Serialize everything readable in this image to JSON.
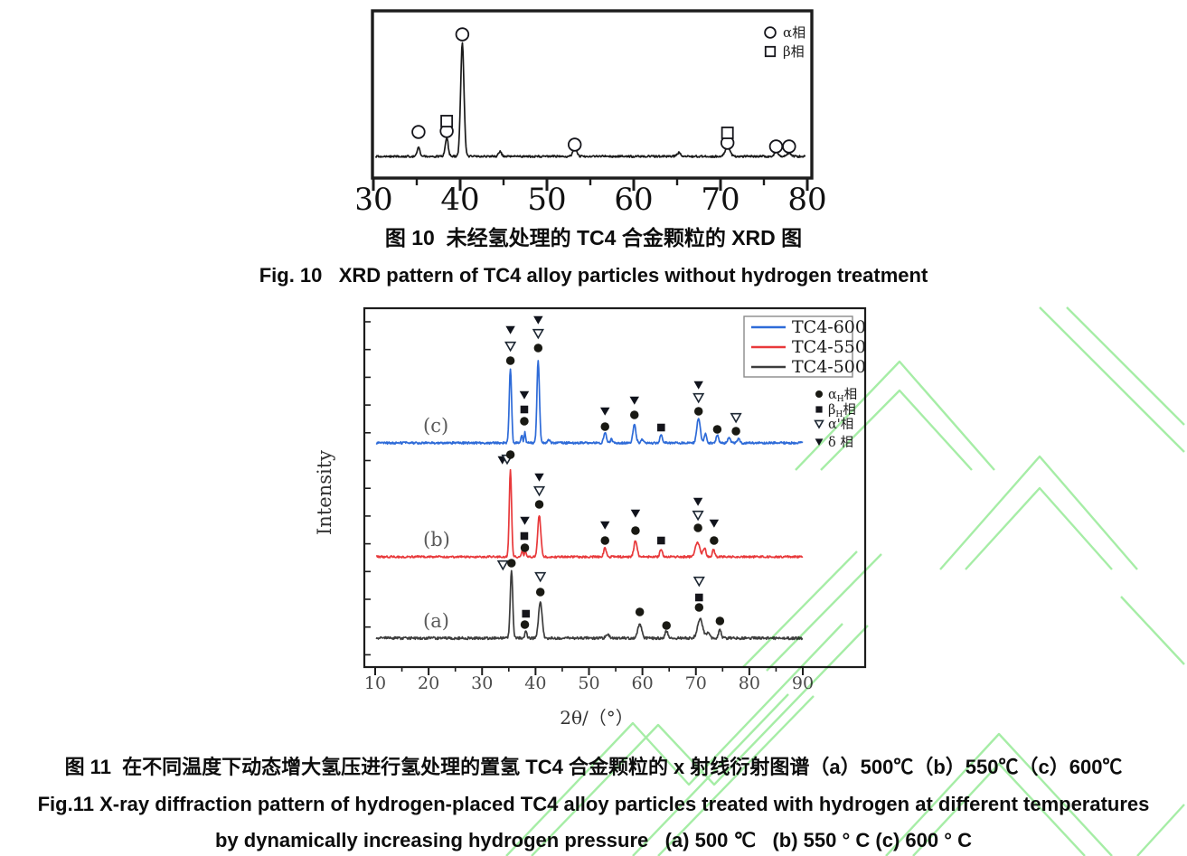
{
  "fig10": {
    "caption_zh": "图 10  未经氢处理的 TC4 合金颗粒的 XRD 图",
    "caption_en": "Fig. 10   XRD pattern of TC4 alloy particles without hydrogen treatment"
  },
  "fig11": {
    "caption_zh": "图 11  在不同温度下动态增大氢压进行氢处理的置氢 TC4 合金颗粒的 x 射线衍射图谱（a）500℃（b）550℃（c）600℃",
    "caption_en1": "Fig.11 X-ray diffraction pattern of hydrogen-placed TC4 alloy particles treated with hydrogen at different temperatures",
    "caption_en2": "by dynamically increasing hydrogen pressure   (a) 500 ℃   (b) 550 ° C (c) 600 ° C"
  },
  "colors": {
    "tc4_600": "#2e6bd8",
    "tc4_550": "#e8393b",
    "tc4_500": "#3d3d3d",
    "untreated_trace": "#1a1a1a",
    "watermark_green": "#a6eda6"
  },
  "chart_data": [
    {
      "type": "line",
      "title": "",
      "xlabel": "",
      "ylabel": "",
      "x_range": [
        30,
        80
      ],
      "x_ticks": [
        30,
        40,
        50,
        60,
        70,
        80
      ],
      "x_minor_ticks": [
        35,
        45,
        55,
        65,
        75
      ],
      "grid": false,
      "legend_position": "top-right",
      "legend": [
        {
          "sym": "oc",
          "label": "α相"
        },
        {
          "sym": "oq",
          "label": "β相"
        }
      ],
      "series": [
        {
          "name": "TC4 without hydrogen treatment",
          "color": "#1a1a1a",
          "label": "",
          "baseline": 173,
          "span": [
            30.25,
            79.75
          ],
          "noise": 1.0,
          "peaks": [
            [
              35.2,
              10,
              0.22
            ],
            [
              38.45,
              21,
              0.24
            ],
            [
              40.25,
              126,
              0.27
            ],
            [
              44.6,
              5,
              0.25
            ],
            [
              53.2,
              10,
              0.3
            ],
            [
              65.2,
              4,
              0.3
            ],
            [
              70.8,
              10,
              0.4
            ],
            [
              76.4,
              5,
              0.28
            ],
            [
              77.9,
              4,
              0.28
            ]
          ],
          "markers": [
            [
              35.2,
              "oc",
              27
            ],
            [
              38.45,
              "oc",
              28
            ],
            [
              38.45,
              "oq",
              39
            ],
            [
              40.25,
              "oc",
              135
            ],
            [
              53.2,
              "oc",
              13
            ],
            [
              70.8,
              "oc",
              15
            ],
            [
              70.8,
              "oq",
              26
            ],
            [
              76.4,
              "oc",
              11
            ],
            [
              77.9,
              "oc",
              11
            ]
          ]
        }
      ]
    },
    {
      "type": "line",
      "title": "",
      "xlabel": "2θ/（°）",
      "ylabel": "Intensity",
      "x_range": [
        10,
        90
      ],
      "x_ticks": [
        10,
        20,
        30,
        40,
        50,
        60,
        70,
        80,
        90
      ],
      "x_minor_ticks": [
        15,
        25,
        35,
        45,
        55,
        65,
        75,
        85
      ],
      "grid": false,
      "legend_position": "top-right",
      "line_legend": [
        {
          "label": "TC4-600",
          "color": "#2e6bd8"
        },
        {
          "label": "TC4-550",
          "color": "#e8393b"
        },
        {
          "label": "TC4-500",
          "color": "#3d3d3d"
        }
      ],
      "phase_legend": [
        {
          "sym": "fc",
          "main": "α",
          "sub": "H",
          "tail": "相"
        },
        {
          "sym": "fs",
          "main": "β",
          "sub": "H",
          "tail": "相"
        },
        {
          "sym": "ot",
          "main": "α'",
          "sub": "",
          "tail": "相"
        },
        {
          "sym": "ft",
          "main": "δ ",
          "sub": "",
          "tail": "相"
        }
      ],
      "series": [
        {
          "name": "TC4-600",
          "color": "#2e6bd8",
          "label": "(c)",
          "baseline": 490,
          "span": [
            10.2,
            90
          ],
          "noise": 1.1,
          "peaks": [
            [
              35.3,
              82,
              0.3
            ],
            [
              37.4,
              9,
              0.2
            ],
            [
              38.0,
              12,
              0.2
            ],
            [
              40.5,
              92,
              0.33
            ],
            [
              42.5,
              3,
              0.3
            ],
            [
              53.0,
              12,
              0.35
            ],
            [
              54.2,
              4,
              0.3
            ],
            [
              58.5,
              20,
              0.4
            ],
            [
              60.0,
              4,
              0.3
            ],
            [
              63.5,
              8,
              0.35
            ],
            [
              70.5,
              28,
              0.45
            ],
            [
              71.8,
              10,
              0.3
            ],
            [
              74.0,
              9,
              0.3
            ],
            [
              76.2,
              6,
              0.3
            ],
            [
              78.0,
              5,
              0.3
            ]
          ],
          "markers": [
            [
              35.3,
              "ft",
              125
            ],
            [
              35.3,
              "ot",
              107
            ],
            [
              35.3,
              "fc",
              91
            ],
            [
              37.9,
              "ft",
              53
            ],
            [
              37.9,
              "fs",
              37
            ],
            [
              37.9,
              "fc",
              24
            ],
            [
              40.5,
              "ft",
              136
            ],
            [
              40.5,
              "ot",
              121
            ],
            [
              40.5,
              "fc",
              105
            ],
            [
              53.0,
              "ft",
              35
            ],
            [
              53.0,
              "fc",
              18
            ],
            [
              58.5,
              "ft",
              47
            ],
            [
              58.5,
              "fc",
              31
            ],
            [
              63.5,
              "fs",
              17
            ],
            [
              70.5,
              "ft",
              64
            ],
            [
              70.5,
              "ot",
              50
            ],
            [
              70.5,
              "fc",
              35
            ],
            [
              74.0,
              "fc",
              15
            ],
            [
              77.5,
              "ot",
              28
            ],
            [
              77.5,
              "fc",
              13
            ]
          ]
        },
        {
          "name": "TC4-550",
          "color": "#e8393b",
          "label": "(b)",
          "baseline": 616,
          "span": [
            10.2,
            90
          ],
          "noise": 1.0,
          "peaks": [
            [
              35.3,
              96,
              0.3
            ],
            [
              37.5,
              7,
              0.2
            ],
            [
              38.1,
              8,
              0.2
            ],
            [
              40.7,
              46,
              0.4
            ],
            [
              53.0,
              10,
              0.35
            ],
            [
              58.7,
              18,
              0.42
            ],
            [
              63.5,
              8,
              0.35
            ],
            [
              70.3,
              16,
              0.6
            ],
            [
              71.6,
              10,
              0.35
            ],
            [
              73.3,
              8,
              0.3
            ]
          ],
          "markers": [
            [
              33.8,
              "ft",
              107
            ],
            [
              34.7,
              "ot",
              108
            ],
            [
              35.3,
              "fc",
              113
            ],
            [
              38.0,
              "ft",
              40
            ],
            [
              37.9,
              "fs",
              23
            ],
            [
              38.0,
              "fc",
              10
            ],
            [
              40.7,
              "ft",
              88
            ],
            [
              40.7,
              "ot",
              73
            ],
            [
              40.7,
              "fc",
              58
            ],
            [
              53.0,
              "ft",
              35
            ],
            [
              53.0,
              "fc",
              18
            ],
            [
              58.7,
              "ft",
              48
            ],
            [
              58.7,
              "fc",
              29
            ],
            [
              63.5,
              "fs",
              18
            ],
            [
              70.4,
              "ft",
              61
            ],
            [
              70.4,
              "ot",
              46
            ],
            [
              70.4,
              "fc",
              32
            ],
            [
              73.4,
              "ft",
              37
            ],
            [
              73.4,
              "fc",
              18
            ]
          ]
        },
        {
          "name": "TC4-500",
          "color": "#3d3d3d",
          "label": "(a)",
          "baseline": 706,
          "span": [
            10.2,
            90
          ],
          "noise": 1.3,
          "peaks": [
            [
              35.5,
              74,
              0.33
            ],
            [
              38.2,
              8,
              0.25
            ],
            [
              40.9,
              41,
              0.45
            ],
            [
              53.5,
              4,
              0.5
            ],
            [
              59.5,
              16,
              0.5
            ],
            [
              64.5,
              8,
              0.4
            ],
            [
              70.8,
              21,
              0.7
            ],
            [
              72.3,
              6,
              0.4
            ],
            [
              74.5,
              10,
              0.35
            ]
          ],
          "markers": [
            [
              33.9,
              "ot",
              81
            ],
            [
              35.5,
              "fc",
              83
            ],
            [
              38.2,
              "fs",
              27
            ],
            [
              38.0,
              "fc",
              15
            ],
            [
              40.9,
              "ot",
              68
            ],
            [
              40.9,
              "fc",
              51
            ],
            [
              59.5,
              "fc",
              29
            ],
            [
              64.5,
              "fc",
              14
            ],
            [
              70.6,
              "ot",
              63
            ],
            [
              70.6,
              "fs",
              45
            ],
            [
              70.6,
              "fc",
              34
            ],
            [
              74.5,
              "fc",
              19
            ]
          ]
        }
      ]
    }
  ]
}
